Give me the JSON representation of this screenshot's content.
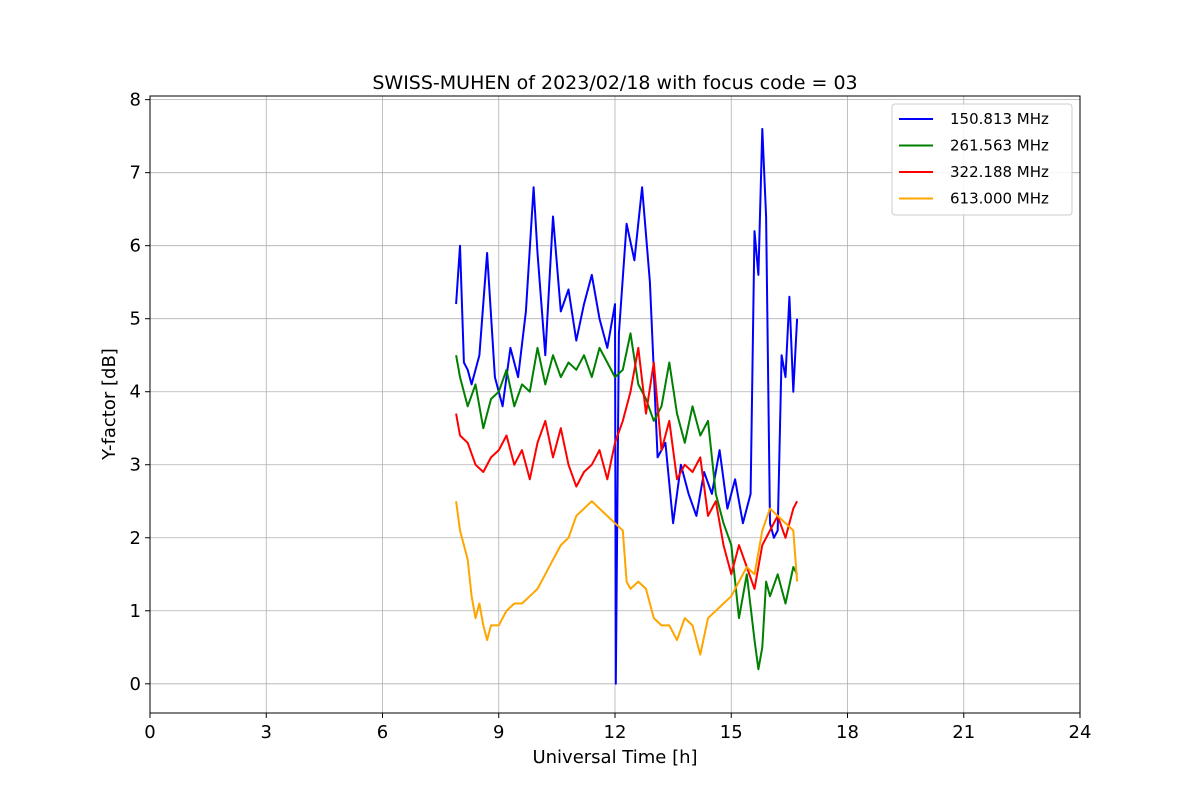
{
  "chart_data": {
    "type": "line",
    "title": "SWISS-MUHEN of 2023/02/18 with focus code = 03",
    "xlabel": "Universal Time [h]",
    "ylabel": "Y-factor [dB]",
    "xlim": [
      0,
      24
    ],
    "ylim": [
      -0.4,
      8.05
    ],
    "xticks": [
      0,
      3,
      6,
      9,
      12,
      15,
      18,
      21,
      24
    ],
    "yticks": [
      0,
      1,
      2,
      3,
      4,
      5,
      6,
      7,
      8
    ],
    "grid": true,
    "legend_position": "top-right",
    "series": [
      {
        "name": "150.813 MHz",
        "color": "#0000ff",
        "x": [
          7.9,
          8.0,
          8.1,
          8.2,
          8.3,
          8.5,
          8.7,
          8.9,
          9.1,
          9.3,
          9.5,
          9.7,
          9.9,
          10.0,
          10.2,
          10.4,
          10.6,
          10.8,
          11.0,
          11.2,
          11.4,
          11.6,
          11.8,
          12.0,
          12.02,
          12.1,
          12.3,
          12.5,
          12.7,
          12.9,
          13.1,
          13.3,
          13.5,
          13.7,
          13.9,
          14.1,
          14.3,
          14.5,
          14.7,
          14.9,
          15.1,
          15.3,
          15.5,
          15.6,
          15.7,
          15.8,
          15.9,
          16.0,
          16.1,
          16.2,
          16.3,
          16.4,
          16.5,
          16.6,
          16.7
        ],
        "y": [
          5.2,
          6.0,
          4.4,
          4.3,
          4.1,
          4.5,
          5.9,
          4.2,
          3.8,
          4.6,
          4.2,
          5.1,
          6.8,
          5.9,
          4.5,
          6.4,
          5.1,
          5.4,
          4.7,
          5.2,
          5.6,
          5.0,
          4.6,
          5.2,
          0.0,
          4.8,
          6.3,
          5.8,
          6.8,
          5.5,
          3.1,
          3.3,
          2.2,
          3.0,
          2.6,
          2.3,
          2.9,
          2.6,
          3.2,
          2.4,
          2.8,
          2.2,
          2.6,
          6.2,
          5.6,
          7.6,
          6.4,
          2.2,
          2.0,
          2.1,
          4.5,
          4.2,
          5.3,
          4.0,
          5.0
        ]
      },
      {
        "name": "261.563 MHz",
        "color": "#008000",
        "x": [
          7.9,
          8.0,
          8.2,
          8.4,
          8.6,
          8.8,
          9.0,
          9.2,
          9.4,
          9.6,
          9.8,
          10.0,
          10.2,
          10.4,
          10.6,
          10.8,
          11.0,
          11.2,
          11.4,
          11.6,
          11.8,
          12.0,
          12.2,
          12.4,
          12.6,
          12.8,
          13.0,
          13.2,
          13.4,
          13.6,
          13.8,
          14.0,
          14.2,
          14.4,
          14.6,
          14.8,
          15.0,
          15.2,
          15.4,
          15.6,
          15.7,
          15.8,
          15.9,
          16.0,
          16.2,
          16.4,
          16.6,
          16.7
        ],
        "y": [
          4.5,
          4.2,
          3.8,
          4.1,
          3.5,
          3.9,
          4.0,
          4.3,
          3.8,
          4.1,
          4.0,
          4.6,
          4.1,
          4.5,
          4.2,
          4.4,
          4.3,
          4.5,
          4.2,
          4.6,
          4.4,
          4.2,
          4.3,
          4.8,
          4.1,
          3.9,
          3.6,
          3.8,
          4.4,
          3.7,
          3.3,
          3.8,
          3.4,
          3.6,
          2.6,
          2.2,
          1.9,
          0.9,
          1.5,
          0.6,
          0.2,
          0.5,
          1.4,
          1.2,
          1.5,
          1.1,
          1.6,
          1.5
        ]
      },
      {
        "name": "322.188 MHz",
        "color": "#ff0000",
        "x": [
          7.9,
          8.0,
          8.2,
          8.4,
          8.6,
          8.8,
          9.0,
          9.2,
          9.4,
          9.6,
          9.8,
          10.0,
          10.2,
          10.4,
          10.6,
          10.8,
          11.0,
          11.2,
          11.4,
          11.6,
          11.8,
          12.0,
          12.2,
          12.4,
          12.6,
          12.8,
          13.0,
          13.2,
          13.4,
          13.6,
          13.8,
          14.0,
          14.2,
          14.4,
          14.6,
          14.8,
          15.0,
          15.2,
          15.4,
          15.6,
          15.8,
          16.0,
          16.2,
          16.4,
          16.6,
          16.7
        ],
        "y": [
          3.7,
          3.4,
          3.3,
          3.0,
          2.9,
          3.1,
          3.2,
          3.4,
          3.0,
          3.2,
          2.8,
          3.3,
          3.6,
          3.1,
          3.5,
          3.0,
          2.7,
          2.9,
          3.0,
          3.2,
          2.8,
          3.3,
          3.6,
          4.0,
          4.6,
          3.7,
          4.4,
          3.2,
          3.6,
          2.8,
          3.0,
          2.9,
          3.1,
          2.3,
          2.5,
          1.9,
          1.5,
          1.9,
          1.6,
          1.3,
          1.9,
          2.1,
          2.3,
          2.0,
          2.4,
          2.5
        ]
      },
      {
        "name": "613.000 MHz",
        "color": "#ffa500",
        "x": [
          7.9,
          8.0,
          8.1,
          8.2,
          8.3,
          8.4,
          8.5,
          8.6,
          8.7,
          8.8,
          9.0,
          9.2,
          9.4,
          9.6,
          9.8,
          10.0,
          10.2,
          10.4,
          10.6,
          10.8,
          11.0,
          11.2,
          11.4,
          11.6,
          11.8,
          12.0,
          12.2,
          12.3,
          12.4,
          12.6,
          12.8,
          13.0,
          13.2,
          13.4,
          13.6,
          13.8,
          14.0,
          14.2,
          14.4,
          14.6,
          14.8,
          15.0,
          15.2,
          15.4,
          15.6,
          15.8,
          16.0,
          16.2,
          16.4,
          16.6,
          16.7
        ],
        "y": [
          2.5,
          2.1,
          1.9,
          1.7,
          1.2,
          0.9,
          1.1,
          0.8,
          0.6,
          0.8,
          0.8,
          1.0,
          1.1,
          1.1,
          1.2,
          1.3,
          1.5,
          1.7,
          1.9,
          2.0,
          2.3,
          2.4,
          2.5,
          2.4,
          2.3,
          2.2,
          2.1,
          1.4,
          1.3,
          1.4,
          1.3,
          0.9,
          0.8,
          0.8,
          0.6,
          0.9,
          0.8,
          0.4,
          0.9,
          1.0,
          1.1,
          1.2,
          1.4,
          1.6,
          1.5,
          2.1,
          2.4,
          2.3,
          2.2,
          2.1,
          1.4
        ]
      }
    ]
  }
}
